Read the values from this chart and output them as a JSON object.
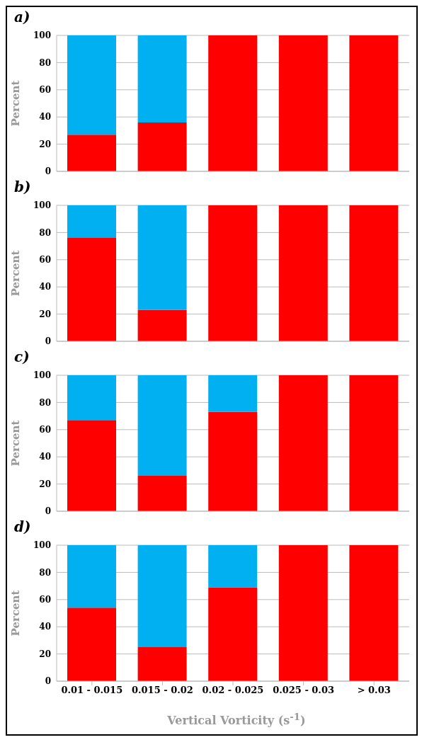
{
  "chart_data": [
    {
      "type": "bar",
      "title": "a)",
      "ylabel": "Percent",
      "categories": [
        null,
        null,
        null,
        null,
        null
      ],
      "stacked": true,
      "tick_labels": "y",
      "grid": "y",
      "ylim": [
        0,
        100
      ],
      "yticks": [
        0,
        20,
        40,
        60,
        80,
        100
      ],
      "series": [
        {
          "color": "#ff0000",
          "values": [
            27,
            36,
            100,
            100,
            100
          ]
        },
        {
          "color": "#00b0f0",
          "values": [
            73,
            64,
            0,
            0,
            0
          ]
        }
      ]
    },
    {
      "type": "bar",
      "title": "b)",
      "ylabel": "Percent",
      "categories": [
        null,
        null,
        null,
        null,
        null
      ],
      "stacked": true,
      "tick_labels": "y",
      "grid": "y",
      "ylim": [
        0,
        100
      ],
      "yticks": [
        0,
        20,
        40,
        60,
        80,
        100
      ],
      "series": [
        {
          "color": "#ff0000",
          "values": [
            76,
            23,
            100,
            100,
            100
          ]
        },
        {
          "color": "#00b0f0",
          "values": [
            24,
            77,
            0,
            0,
            0
          ]
        }
      ]
    },
    {
      "type": "bar",
      "title": "c)",
      "ylabel": "Percent",
      "categories": [
        null,
        null,
        null,
        null,
        null
      ],
      "stacked": true,
      "tick_labels": "y",
      "grid": "y",
      "ylim": [
        0,
        100
      ],
      "yticks": [
        0,
        20,
        40,
        60,
        80,
        100
      ],
      "series": [
        {
          "color": "#ff0000",
          "values": [
            67,
            26,
            73,
            100,
            100
          ]
        },
        {
          "color": "#00b0f0",
          "values": [
            33,
            74,
            27,
            0,
            0
          ]
        }
      ]
    },
    {
      "type": "bar",
      "title": "d)",
      "ylabel": "Percent",
      "xlabel": "Vertical Vorticity (s$^{-1}$)",
      "categories": [
        "0.01 - 0.015",
        "0.015 - 0.02",
        "0.02 - 0.025",
        "0.025 - 0.03",
        "> 0.03"
      ],
      "stacked": true,
      "grid": "y",
      "ylim": [
        0,
        100
      ],
      "yticks": [
        0,
        20,
        40,
        60,
        80,
        100
      ],
      "series": [
        {
          "color": "#ff0000",
          "values": [
            54,
            25,
            69,
            100,
            100
          ]
        },
        {
          "color": "#00b0f0",
          "values": [
            46,
            75,
            31,
            0,
            0
          ]
        }
      ]
    }
  ]
}
